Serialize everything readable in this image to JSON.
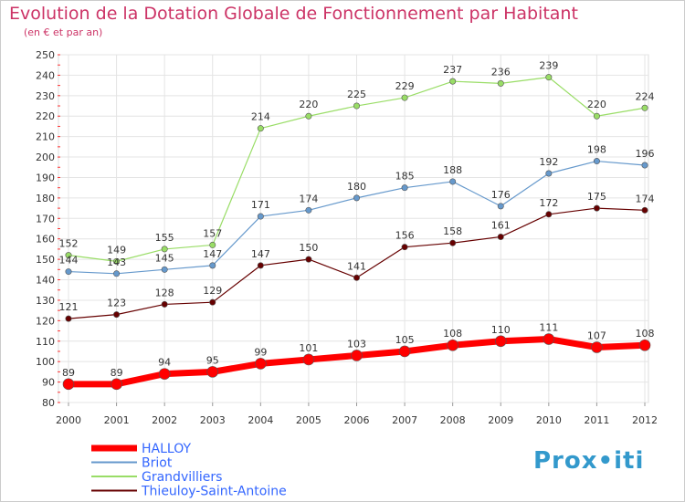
{
  "chart_data": {
    "type": "line",
    "title": "Evolution de la Dotation Globale de Fonctionnement par Habitant",
    "subtitle": "(en € et par an)",
    "x": [
      "2000",
      "2001",
      "2002",
      "2003",
      "2004",
      "2005",
      "2006",
      "2007",
      "2008",
      "2009",
      "2010",
      "2011",
      "2012"
    ],
    "ylim": [
      80,
      250
    ],
    "yticks": [
      80,
      90,
      100,
      110,
      120,
      130,
      140,
      150,
      160,
      170,
      180,
      190,
      200,
      210,
      220,
      230,
      240,
      250
    ],
    "grid": true,
    "legend": "bottom-left",
    "series": [
      {
        "name": "HALLOY",
        "color": "#ff0000",
        "values": [
          89,
          89,
          94,
          95,
          99,
          101,
          103,
          105,
          108,
          110,
          111,
          107,
          108
        ]
      },
      {
        "name": "Briot",
        "color": "#6699cc",
        "values": [
          144,
          143,
          145,
          147,
          171,
          174,
          180,
          185,
          188,
          176,
          192,
          198,
          196
        ]
      },
      {
        "name": "Grandvilliers",
        "color": "#99dd66",
        "values": [
          152,
          149,
          155,
          157,
          214,
          220,
          225,
          229,
          237,
          236,
          239,
          220,
          224
        ]
      },
      {
        "name": "Thieuloy-Saint-Antoine",
        "color": "#660000",
        "values": [
          121,
          123,
          128,
          129,
          147,
          150,
          141,
          156,
          158,
          161,
          172,
          175,
          174
        ]
      }
    ],
    "value_labels": {
      "HALLOY": [
        "89",
        "89",
        "94",
        "95",
        "99",
        "101",
        "103",
        "105",
        "108",
        "110",
        "111",
        "107",
        "108"
      ],
      "Briot": [
        "144",
        "143",
        "145",
        "147",
        "171",
        "174",
        "180",
        "185",
        "188",
        "176",
        "192",
        "198",
        "196"
      ],
      "Grandvilliers": [
        "152",
        "149",
        "155",
        "157",
        "214",
        "220",
        "225",
        "229",
        "237",
        "236",
        "239",
        "220",
        "224"
      ],
      "Thieuloy-Saint-Antoine": [
        "121",
        "123",
        "128",
        "129",
        "147",
        "150",
        "141",
        "156",
        "158",
        "161",
        "172",
        "175",
        "174"
      ]
    }
  },
  "watermark": "Prox•iti"
}
